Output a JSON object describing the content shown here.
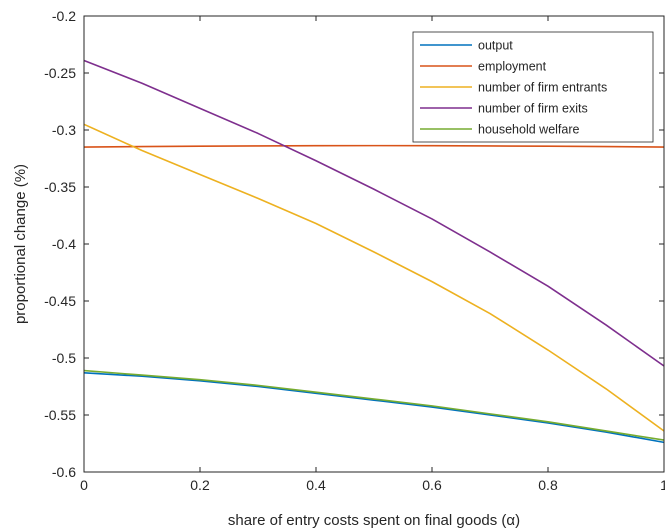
{
  "chart_data": {
    "type": "line",
    "title": "",
    "xlabel": "share of entry costs spent on final goods (α)",
    "ylabel": "proportional change (%)",
    "xlim": [
      0,
      1
    ],
    "ylim": [
      -0.6,
      -0.2
    ],
    "x_ticks": [
      "0",
      "0.2",
      "0.4",
      "0.6",
      "0.8",
      "1"
    ],
    "y_ticks": [
      "-0.2",
      "-0.25",
      "-0.3",
      "-0.35",
      "-0.4",
      "-0.45",
      "-0.5",
      "-0.55",
      "-0.6"
    ],
    "grid": false,
    "legend_position": "top-right",
    "x": [
      0,
      0.1,
      0.2,
      0.3,
      0.4,
      0.5,
      0.6,
      0.7,
      0.8,
      0.9,
      1.0
    ],
    "series": [
      {
        "name": "output",
        "color": "#0072BD",
        "values": [
          -0.513,
          -0.516,
          -0.52,
          -0.525,
          -0.531,
          -0.537,
          -0.543,
          -0.55,
          -0.557,
          -0.565,
          -0.574
        ]
      },
      {
        "name": "employment",
        "color": "#D95319",
        "values": [
          -0.315,
          -0.3145,
          -0.3142,
          -0.314,
          -0.3138,
          -0.3137,
          -0.3138,
          -0.314,
          -0.3142,
          -0.3145,
          -0.315
        ]
      },
      {
        "name": "number of firm entrants",
        "color": "#EDB120",
        "values": [
          -0.295,
          -0.318,
          -0.339,
          -0.36,
          -0.382,
          -0.407,
          -0.433,
          -0.461,
          -0.493,
          -0.527,
          -0.564
        ]
      },
      {
        "name": "number of firm exits",
        "color": "#7E2F8E",
        "values": [
          -0.239,
          -0.259,
          -0.281,
          -0.303,
          -0.327,
          -0.352,
          -0.378,
          -0.407,
          -0.437,
          -0.471,
          -0.507
        ]
      },
      {
        "name": "household welfare",
        "color": "#77AC30",
        "values": [
          -0.511,
          -0.515,
          -0.519,
          -0.524,
          -0.53,
          -0.536,
          -0.542,
          -0.549,
          -0.556,
          -0.564,
          -0.572
        ]
      }
    ]
  }
}
